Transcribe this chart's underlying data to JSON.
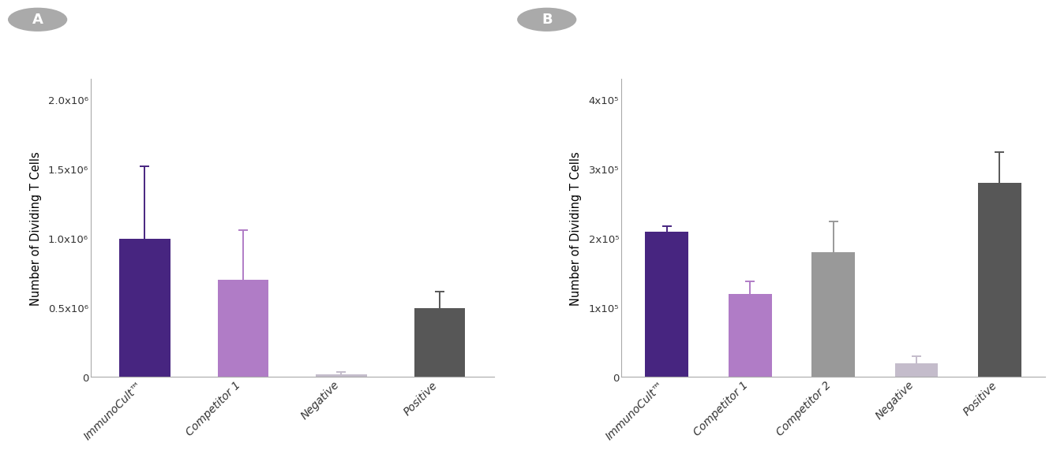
{
  "panel_A": {
    "categories": [
      "ImmunoCult™",
      "Competitor 1",
      "Negative",
      "Positive"
    ],
    "values": [
      1000000.0,
      700000.0,
      22000.0,
      500000.0
    ],
    "errors_upper": [
      520000.0,
      360000.0,
      13000.0,
      115000.0
    ],
    "errors_lower": [
      470000.0,
      380000.0,
      10000.0,
      65000.0
    ],
    "colors": [
      "#472580",
      "#B07CC6",
      "#C4BCCB",
      "#575757"
    ],
    "ylabel": "Number of Dividing T Cells",
    "ylim": [
      0,
      2150000.0
    ],
    "yticks": [
      0,
      500000.0,
      1000000.0,
      1500000.0,
      2000000.0
    ],
    "ytick_labels": [
      "0",
      "0.5x10⁶",
      "1.0x10⁶",
      "1.5x10⁶",
      "2.0x10⁶"
    ],
    "label": "A"
  },
  "panel_B": {
    "categories": [
      "ImmunoCult™",
      "Competitor 1",
      "Competitor 2",
      "Negative",
      "Positive"
    ],
    "values": [
      210000.0,
      120000.0,
      180000.0,
      20000.0,
      280000.0
    ],
    "errors_upper": [
      8000.0,
      18000.0,
      45000.0,
      10000.0,
      45000.0
    ],
    "errors_lower": [
      7000.0,
      7000.0,
      10000.0,
      5000.0,
      10000.0
    ],
    "colors": [
      "#472580",
      "#B07CC6",
      "#999999",
      "#C4BCCB",
      "#575757"
    ],
    "ylabel": "Number of Dividing T Cells",
    "ylim": [
      0,
      430000.0
    ],
    "yticks": [
      0,
      100000.0,
      200000.0,
      300000.0,
      400000.0
    ],
    "ytick_labels": [
      "0",
      "1x10⁵",
      "2x10⁵",
      "3x10⁵",
      "4x10⁵"
    ],
    "label": "B"
  },
  "label_circle_color": "#aaaaaa",
  "label_fontsize": 13,
  "ylabel_fontsize": 10.5,
  "tick_fontsize": 9.5,
  "xticklabel_fontsize": 10,
  "bar_width": 0.52,
  "capsize": 4
}
